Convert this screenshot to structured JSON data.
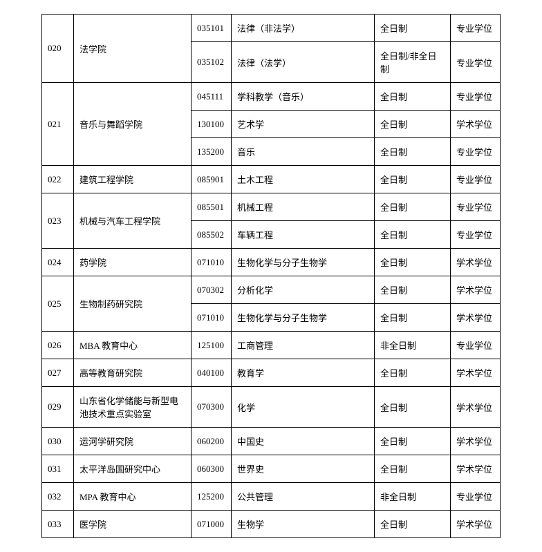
{
  "table": {
    "rows": [
      {
        "code": "020",
        "college": "法学院",
        "major_code": "035101",
        "major_name": "法律（非法学）",
        "mode": "全日制",
        "degree": "专业学位",
        "rowspan": 2
      },
      {
        "code": "",
        "college": "",
        "major_code": "035102",
        "major_name": "法律（法学）",
        "mode": "全日制/非全日制",
        "degree": "专业学位",
        "rowspan": 0
      },
      {
        "code": "021",
        "college": "音乐与舞蹈学院",
        "major_code": "045111",
        "major_name": "学科教学（音乐）",
        "mode": "全日制",
        "degree": "专业学位",
        "rowspan": 3
      },
      {
        "code": "",
        "college": "",
        "major_code": "130100",
        "major_name": "艺术学",
        "mode": "全日制",
        "degree": "学术学位",
        "rowspan": 0
      },
      {
        "code": "",
        "college": "",
        "major_code": "135200",
        "major_name": "音乐",
        "mode": "全日制",
        "degree": "专业学位",
        "rowspan": 0
      },
      {
        "code": "022",
        "college": "建筑工程学院",
        "major_code": "085901",
        "major_name": "土木工程",
        "mode": "全日制",
        "degree": "专业学位",
        "rowspan": 1
      },
      {
        "code": "023",
        "college": "机械与汽车工程学院",
        "major_code": "085501",
        "major_name": "机械工程",
        "mode": "全日制",
        "degree": "专业学位",
        "rowspan": 2
      },
      {
        "code": "",
        "college": "",
        "major_code": "085502",
        "major_name": "车辆工程",
        "mode": "全日制",
        "degree": "专业学位",
        "rowspan": 0
      },
      {
        "code": "024",
        "college": "药学院",
        "major_code": "071010",
        "major_name": "生物化学与分子生物学",
        "mode": "全日制",
        "degree": "学术学位",
        "rowspan": 1
      },
      {
        "code": "025",
        "college": "生物制药研究院",
        "major_code": "070302",
        "major_name": "分析化学",
        "mode": "全日制",
        "degree": "学术学位",
        "rowspan": 2
      },
      {
        "code": "",
        "college": "",
        "major_code": "071010",
        "major_name": "生物化学与分子生物学",
        "mode": "全日制",
        "degree": "学术学位",
        "rowspan": 0
      },
      {
        "code": "026",
        "college": "MBA 教育中心",
        "major_code": "125100",
        "major_name": "工商管理",
        "mode": "非全日制",
        "degree": "专业学位",
        "rowspan": 1
      },
      {
        "code": "027",
        "college": "高等教育研究院",
        "major_code": "040100",
        "major_name": "教育学",
        "mode": "全日制",
        "degree": "学术学位",
        "rowspan": 1
      },
      {
        "code": "029",
        "college": "山东省化学储能与新型电池技术重点实验室",
        "major_code": "070300",
        "major_name": "化学",
        "mode": "全日制",
        "degree": "学术学位",
        "rowspan": 1
      },
      {
        "code": "030",
        "college": "运河学研究院",
        "major_code": "060200",
        "major_name": "中国史",
        "mode": "全日制",
        "degree": "学术学位",
        "rowspan": 1
      },
      {
        "code": "031",
        "college": "太平洋岛国研究中心",
        "major_code": "060300",
        "major_name": "世界史",
        "mode": "全日制",
        "degree": "学术学位",
        "rowspan": 1
      },
      {
        "code": "032",
        "college": "MPA 教育中心",
        "major_code": "125200",
        "major_name": "公共管理",
        "mode": "非全日制",
        "degree": "专业学位",
        "rowspan": 1
      },
      {
        "code": "033",
        "college": "医学院",
        "major_code": "071000",
        "major_name": "生物学",
        "mode": "全日制",
        "degree": "学术学位",
        "rowspan": 1
      }
    ]
  }
}
